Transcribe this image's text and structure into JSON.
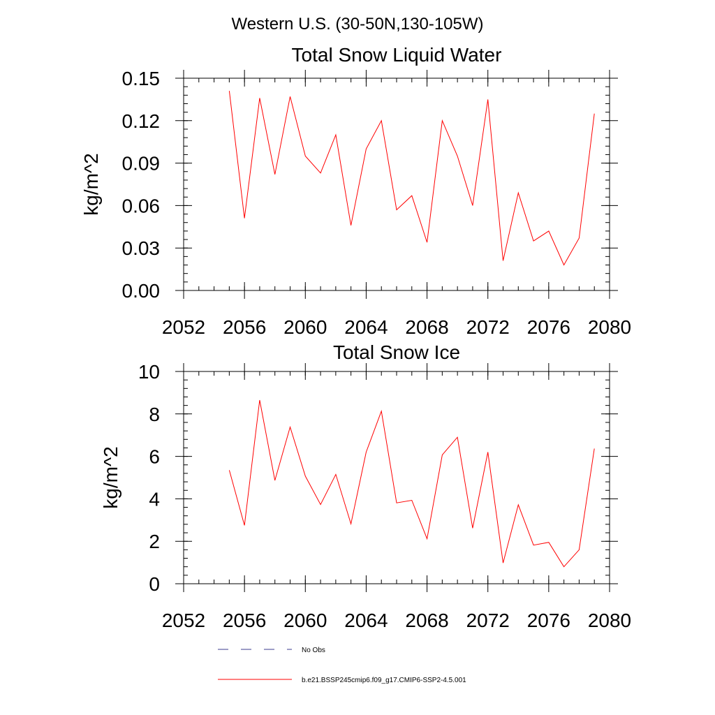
{
  "figure_title": "Western U.S. (30-50N,130-105W)",
  "chart_data": [
    {
      "type": "line",
      "title": "Total Snow Liquid Water",
      "xlabel": "",
      "ylabel": "kg/m^2",
      "xlim": [
        2052,
        2080
      ],
      "ylim": [
        0,
        0.15
      ],
      "x_ticks": [
        2052,
        2056,
        2060,
        2064,
        2068,
        2072,
        2076,
        2080
      ],
      "x_tick_labels": [
        "2052",
        "2056",
        "2060",
        "2064",
        "2068",
        "2072",
        "2076",
        "2080"
      ],
      "y_ticks": [
        0,
        0.03,
        0.06,
        0.09,
        0.12,
        0.15
      ],
      "y_tick_labels": [
        "0.00",
        "0.03",
        "0.06",
        "0.09",
        "0.12",
        "0.15"
      ],
      "y_minor_step": 0.006,
      "x_minor_step": 1,
      "grid": false,
      "series": [
        {
          "name": "b.e21.BSSP245cmip6.f09_g17.CMIP6-SSP2-4.5.001",
          "color": "#ff0000",
          "x": [
            2055,
            2056,
            2057,
            2058,
            2059,
            2060,
            2061,
            2062,
            2063,
            2064,
            2065,
            2066,
            2067,
            2068,
            2069,
            2070,
            2071,
            2072,
            2073,
            2074,
            2075,
            2076,
            2077,
            2078,
            2079
          ],
          "values": [
            0.141,
            0.051,
            0.136,
            0.082,
            0.137,
            0.095,
            0.083,
            0.11,
            0.046,
            0.1,
            0.12,
            0.057,
            0.067,
            0.034,
            0.12,
            0.095,
            0.06,
            0.135,
            0.021,
            0.069,
            0.035,
            0.042,
            0.018,
            0.037,
            0.125
          ]
        }
      ]
    },
    {
      "type": "line",
      "title": "Total Snow Ice",
      "xlabel": "",
      "ylabel": "kg/m^2",
      "xlim": [
        2052,
        2080
      ],
      "ylim": [
        0,
        10
      ],
      "x_ticks": [
        2052,
        2056,
        2060,
        2064,
        2068,
        2072,
        2076,
        2080
      ],
      "x_tick_labels": [
        "2052",
        "2056",
        "2060",
        "2064",
        "2068",
        "2072",
        "2076",
        "2080"
      ],
      "y_ticks": [
        0,
        2,
        4,
        6,
        8,
        10
      ],
      "y_tick_labels": [
        "0",
        "2",
        "4",
        "6",
        "8",
        "10"
      ],
      "y_minor_step": 0.4,
      "x_minor_step": 1,
      "grid": false,
      "series": [
        {
          "name": "b.e21.BSSP245cmip6.f09_g17.CMIP6-SSP2-4.5.001",
          "color": "#ff0000",
          "x": [
            2055,
            2056,
            2057,
            2058,
            2059,
            2060,
            2061,
            2062,
            2063,
            2064,
            2065,
            2066,
            2067,
            2068,
            2069,
            2070,
            2071,
            2072,
            2073,
            2074,
            2075,
            2076,
            2077,
            2078,
            2079
          ],
          "values": [
            5.35,
            2.75,
            8.65,
            4.87,
            7.38,
            5.07,
            3.73,
            5.15,
            2.82,
            6.2,
            8.13,
            3.81,
            3.93,
            2.12,
            6.07,
            6.9,
            2.62,
            6.2,
            0.98,
            3.72,
            1.82,
            1.95,
            0.8,
            1.6,
            6.37
          ]
        }
      ]
    }
  ],
  "legend": [
    {
      "label": "No Obs",
      "color": "#3b3b8f",
      "style": "dashed"
    },
    {
      "label": "b.e21.BSSP245cmip6.f09_g17.CMIP6-SSP2-4.5.001",
      "color": "#ff0000",
      "style": "solid"
    }
  ]
}
